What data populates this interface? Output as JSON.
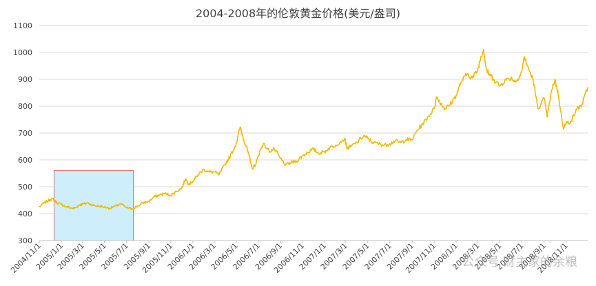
{
  "chart_data": {
    "type": "line",
    "title": "2004-2008年的伦敦黄金价格(美元/盎司)",
    "xlabel": "",
    "ylabel": "",
    "ylim": [
      300,
      1100
    ],
    "yticks": [
      300,
      400,
      500,
      600,
      700,
      800,
      900,
      1000,
      1100
    ],
    "xlim": [
      "2004-11-01",
      "2008-12-31"
    ],
    "x_tick_labels": [
      "2004/11/1",
      "2005/1/1",
      "2005/3/1",
      "2005/5/1",
      "2005/7/1",
      "2005/9/1",
      "2005/11/1",
      "2006/1/1",
      "2006/3/1",
      "2006/5/1",
      "2006/7/1",
      "2006/9/1",
      "2006/11/1",
      "2007/1/1",
      "2007/3/1",
      "2007/5/1",
      "2007/7/1",
      "2007/9/1",
      "2007/11/1",
      "2008/1/1",
      "2008/3/1",
      "2008/5/1",
      "2008/7/1",
      "2008/9/1",
      "2008/11/1"
    ],
    "grid": true,
    "legend": "none",
    "colors": {
      "line": "#f2b900",
      "highlight_fill": "#cdeefa",
      "highlight_stroke": "#e06666",
      "grid": "#d9d9d9",
      "axis": "#bfbfbf"
    },
    "highlight": {
      "x_start": "2004-12-12",
      "x_end": "2005-07-20",
      "y_min": 300,
      "y_max": 560
    },
    "series": [
      {
        "x": [
          "2004-11-01",
          "2004-11-15",
          "2004-12-01",
          "2004-12-10",
          "2004-12-20",
          "2005-01-01",
          "2005-01-15",
          "2005-02-01",
          "2005-02-10",
          "2005-02-20",
          "2005-03-01",
          "2005-03-15",
          "2005-04-01",
          "2005-04-15",
          "2005-05-01",
          "2005-05-15",
          "2005-06-01",
          "2005-06-15",
          "2005-07-01",
          "2005-07-15",
          "2005-08-01",
          "2005-08-15",
          "2005-09-01",
          "2005-09-15",
          "2005-10-01",
          "2005-10-15",
          "2005-11-01",
          "2005-11-15",
          "2005-12-01",
          "2005-12-12",
          "2005-12-20",
          "2006-01-01",
          "2006-01-15",
          "2006-02-01",
          "2006-02-15",
          "2006-03-01",
          "2006-03-15",
          "2006-04-01",
          "2006-04-15",
          "2006-05-01",
          "2006-05-12",
          "2006-05-22",
          "2006-06-01",
          "2006-06-14",
          "2006-06-25",
          "2006-07-05",
          "2006-07-15",
          "2006-08-01",
          "2006-08-15",
          "2006-09-01",
          "2006-09-15",
          "2006-10-01",
          "2006-10-15",
          "2006-11-01",
          "2006-11-15",
          "2006-12-01",
          "2006-12-15",
          "2007-01-01",
          "2007-01-15",
          "2007-02-01",
          "2007-02-26",
          "2007-03-05",
          "2007-03-15",
          "2007-04-01",
          "2007-04-20",
          "2007-05-01",
          "2007-05-15",
          "2007-06-01",
          "2007-06-15",
          "2007-07-01",
          "2007-07-15",
          "2007-08-01",
          "2007-08-15",
          "2007-09-01",
          "2007-09-15",
          "2007-10-01",
          "2007-10-15",
          "2007-11-01",
          "2007-11-08",
          "2007-11-20",
          "2007-12-01",
          "2007-12-15",
          "2008-01-01",
          "2008-01-15",
          "2008-02-01",
          "2008-02-15",
          "2008-03-01",
          "2008-03-10",
          "2008-03-17",
          "2008-03-25",
          "2008-04-01",
          "2008-04-15",
          "2008-05-01",
          "2008-05-15",
          "2008-06-01",
          "2008-06-15",
          "2008-07-01",
          "2008-07-08",
          "2008-07-15",
          "2008-08-01",
          "2008-08-15",
          "2008-09-01",
          "2008-09-10",
          "2008-09-20",
          "2008-10-01",
          "2008-10-10",
          "2008-10-24",
          "2008-11-01",
          "2008-11-15",
          "2008-12-01",
          "2008-12-15",
          "2008-12-31"
        ],
        "values": [
          425,
          440,
          452,
          455,
          440,
          435,
          425,
          420,
          422,
          432,
          435,
          440,
          430,
          428,
          425,
          420,
          428,
          436,
          422,
          418,
          428,
          440,
          445,
          462,
          470,
          475,
          468,
          482,
          495,
          530,
          510,
          520,
          545,
          565,
          555,
          555,
          545,
          585,
          615,
          660,
          722,
          675,
          640,
          568,
          585,
          630,
          660,
          632,
          640,
          605,
          580,
          590,
          595,
          615,
          628,
          640,
          625,
          630,
          645,
          655,
          680,
          642,
          650,
          665,
          690,
          680,
          665,
          660,
          655,
          660,
          670,
          665,
          675,
          675,
          710,
          735,
          760,
          790,
          835,
          810,
          790,
          805,
          840,
          890,
          920,
          905,
          935,
          985,
          1011,
          935,
          920,
          900,
          875,
          895,
          905,
          890,
          930,
          985,
          955,
          900,
          790,
          830,
          760,
          845,
          900,
          845,
          720,
          735,
          745,
          790,
          805,
          870
        ]
      }
    ],
    "watermark": "公众号·财主家的余粮"
  }
}
